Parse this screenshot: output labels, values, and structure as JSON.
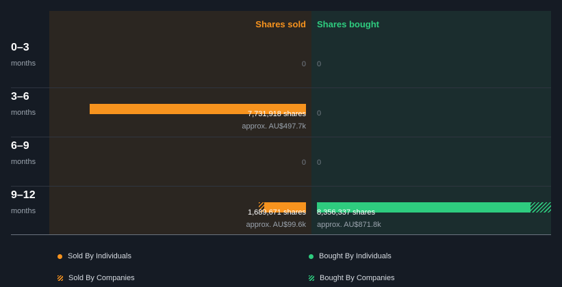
{
  "chart_data": {
    "type": "bar",
    "orientation": "horizontal-diverging",
    "title": "",
    "column_headers": {
      "sold": "Shares sold",
      "bought": "Shares bought"
    },
    "unit_label": "months",
    "categories": [
      "0–3",
      "3–6",
      "6–9",
      "9–12"
    ],
    "zero_label": "0",
    "series": [
      {
        "name": "Sold By Individuals",
        "side": "sold",
        "values": [
          0,
          7731918,
          0,
          1483000
        ]
      },
      {
        "name": "Sold By Companies",
        "side": "sold",
        "values": [
          0,
          0,
          0,
          207000
        ]
      },
      {
        "name": "Bought By Individuals",
        "side": "bought",
        "values": [
          0,
          0,
          0,
          7633000
        ]
      },
      {
        "name": "Bought By Companies",
        "side": "bought",
        "values": [
          0,
          0,
          0,
          723000
        ]
      }
    ],
    "totals": {
      "sold": [
        0,
        7731918,
        0,
        1689671
      ],
      "bought": [
        0,
        0,
        0,
        8356337
      ]
    },
    "sold_labels": [
      null,
      {
        "shares": "7,731,918 shares",
        "approx": "approx. AU$497.7k"
      },
      null,
      {
        "shares": "1,689,671 shares",
        "approx": "approx. AU$99.6k"
      }
    ],
    "bought_labels": [
      null,
      null,
      null,
      {
        "shares": "8,356,337 shares",
        "approx": "approx. AU$871.8k"
      }
    ],
    "scale_max": 8356337,
    "legend": [
      {
        "label": "Sold By Individuals",
        "color": "#f7931e",
        "style": "solid"
      },
      {
        "label": "Bought By Individuals",
        "color": "#2ecc7f",
        "style": "solid"
      },
      {
        "label": "Sold By Companies",
        "color": "#f7931e",
        "style": "hatched"
      },
      {
        "label": "Bought By Companies",
        "color": "#2ecc7f",
        "style": "hatched"
      }
    ],
    "colors": {
      "sold": "#f7931e",
      "bought": "#2ecc7f",
      "background": "#151b24"
    }
  }
}
